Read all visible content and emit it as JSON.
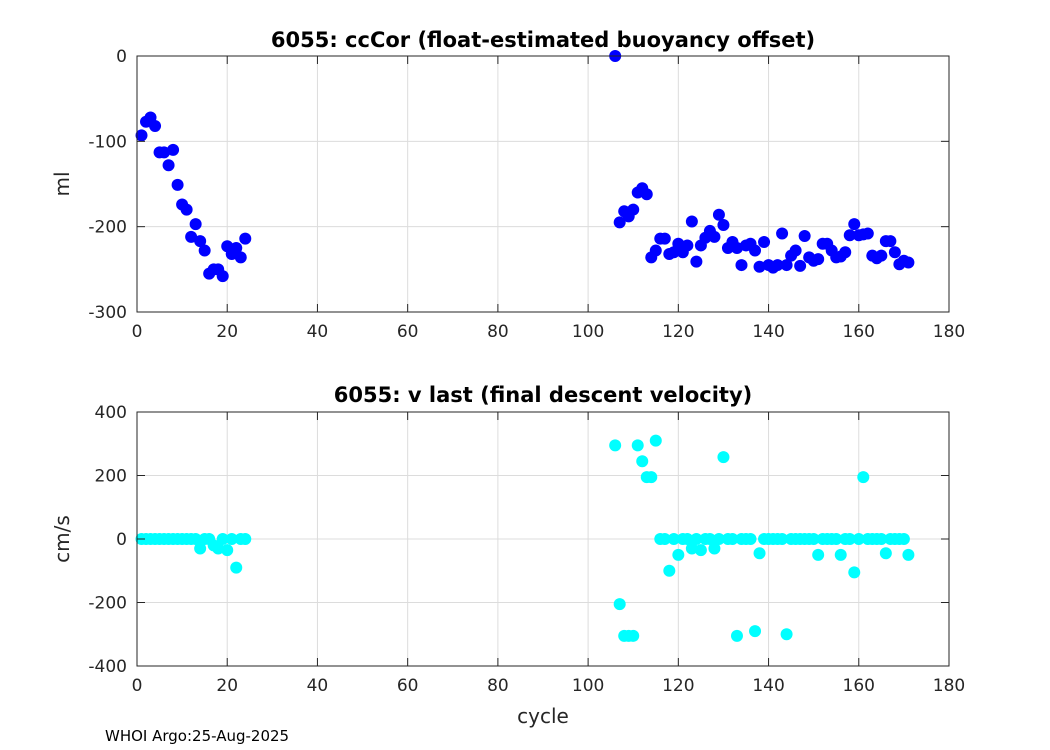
{
  "footer": "WHOI Argo:25-Aug-2025",
  "chart_data": [
    {
      "type": "scatter",
      "title": "6055: ccCor (float-estimated buoyancy offset)",
      "xlabel": "",
      "ylabel": "ml",
      "xlim": [
        0,
        180
      ],
      "ylim": [
        -300,
        0
      ],
      "xticks": [
        0,
        20,
        40,
        60,
        80,
        100,
        120,
        140,
        160,
        180
      ],
      "yticks": [
        -300,
        -200,
        -100,
        0
      ],
      "grid": true,
      "color": "#0000ff",
      "series": [
        {
          "name": "ccCor",
          "x": [
            1,
            2,
            3,
            4,
            5,
            6,
            7,
            8,
            9,
            10,
            11,
            12,
            13,
            14,
            15,
            16,
            17,
            18,
            19,
            20,
            21,
            22,
            23,
            24,
            106,
            107,
            108,
            109,
            110,
            111,
            112,
            113,
            114,
            115,
            116,
            117,
            118,
            119,
            120,
            121,
            122,
            123,
            124,
            125,
            126,
            127,
            128,
            129,
            130,
            131,
            132,
            133,
            134,
            135,
            136,
            137,
            138,
            139,
            140,
            141,
            142,
            143,
            144,
            145,
            146,
            147,
            148,
            149,
            150,
            151,
            152,
            153,
            154,
            155,
            156,
            157,
            158,
            159,
            160,
            161,
            162,
            163,
            164,
            165,
            166,
            167,
            168,
            169,
            170,
            171
          ],
          "y": [
            -93,
            -77,
            -72,
            -82,
            -113,
            -113,
            -128,
            -110,
            -151,
            -174,
            -180,
            -212,
            -197,
            -217,
            -228,
            -255,
            -250,
            -250,
            -258,
            -223,
            -232,
            -225,
            -236,
            -214,
            0,
            -195,
            -182,
            -188,
            -180,
            -160,
            -155,
            -162,
            -236,
            -228,
            -214,
            -214,
            -232,
            -230,
            -220,
            -230,
            -222,
            -194,
            -241,
            -222,
            -213,
            -205,
            -212,
            -186,
            -198,
            -225,
            -218,
            -225,
            -245,
            -222,
            -220,
            -228,
            -247,
            -218,
            -245,
            -248,
            -245,
            -208,
            -245,
            -234,
            -228,
            -246,
            -211,
            -236,
            -240,
            -238,
            -220,
            -220,
            -228,
            -236,
            -235,
            -230,
            -210,
            -197,
            -210,
            -209,
            -208,
            -234,
            -237,
            -234,
            -217,
            -217,
            -230,
            -244,
            -240,
            -242
          ]
        }
      ]
    },
    {
      "type": "scatter",
      "title": "6055: v last (final descent velocity)",
      "xlabel": "cycle",
      "ylabel": "cm/s",
      "xlim": [
        0,
        180
      ],
      "ylim": [
        -400,
        400
      ],
      "xticks": [
        0,
        20,
        40,
        60,
        80,
        100,
        120,
        140,
        160,
        180
      ],
      "yticks": [
        -400,
        -200,
        0,
        200,
        400
      ],
      "grid": true,
      "color": "#00ffff",
      "series": [
        {
          "name": "v last",
          "x": [
            1,
            2,
            3,
            4,
            5,
            6,
            7,
            8,
            9,
            10,
            11,
            12,
            13,
            14,
            15,
            16,
            17,
            18,
            19,
            20,
            21,
            22,
            23,
            24,
            106,
            107,
            108,
            109,
            110,
            111,
            112,
            113,
            114,
            115,
            116,
            117,
            118,
            119,
            120,
            121,
            122,
            123,
            124,
            125,
            126,
            127,
            128,
            129,
            130,
            131,
            132,
            133,
            134,
            135,
            136,
            137,
            138,
            139,
            140,
            141,
            142,
            143,
            144,
            145,
            146,
            147,
            148,
            149,
            150,
            151,
            152,
            153,
            154,
            155,
            156,
            157,
            158,
            159,
            160,
            161,
            162,
            163,
            164,
            165,
            166,
            167,
            168,
            169,
            170,
            171
          ],
          "y": [
            0,
            0,
            0,
            0,
            0,
            0,
            0,
            0,
            0,
            0,
            0,
            0,
            0,
            -30,
            0,
            0,
            -20,
            -30,
            0,
            -35,
            0,
            -90,
            0,
            0,
            295,
            -205,
            -305,
            -305,
            -305,
            295,
            245,
            195,
            195,
            310,
            0,
            0,
            -100,
            0,
            -50,
            0,
            0,
            -30,
            0,
            -35,
            0,
            0,
            -30,
            0,
            258,
            0,
            0,
            -305,
            0,
            0,
            0,
            -290,
            -45,
            0,
            0,
            0,
            0,
            0,
            -300,
            0,
            0,
            0,
            0,
            0,
            0,
            -50,
            0,
            0,
            0,
            0,
            -50,
            0,
            0,
            -105,
            0,
            195,
            0,
            0,
            0,
            0,
            -45,
            0,
            0,
            0,
            0,
            -50
          ]
        }
      ]
    }
  ]
}
